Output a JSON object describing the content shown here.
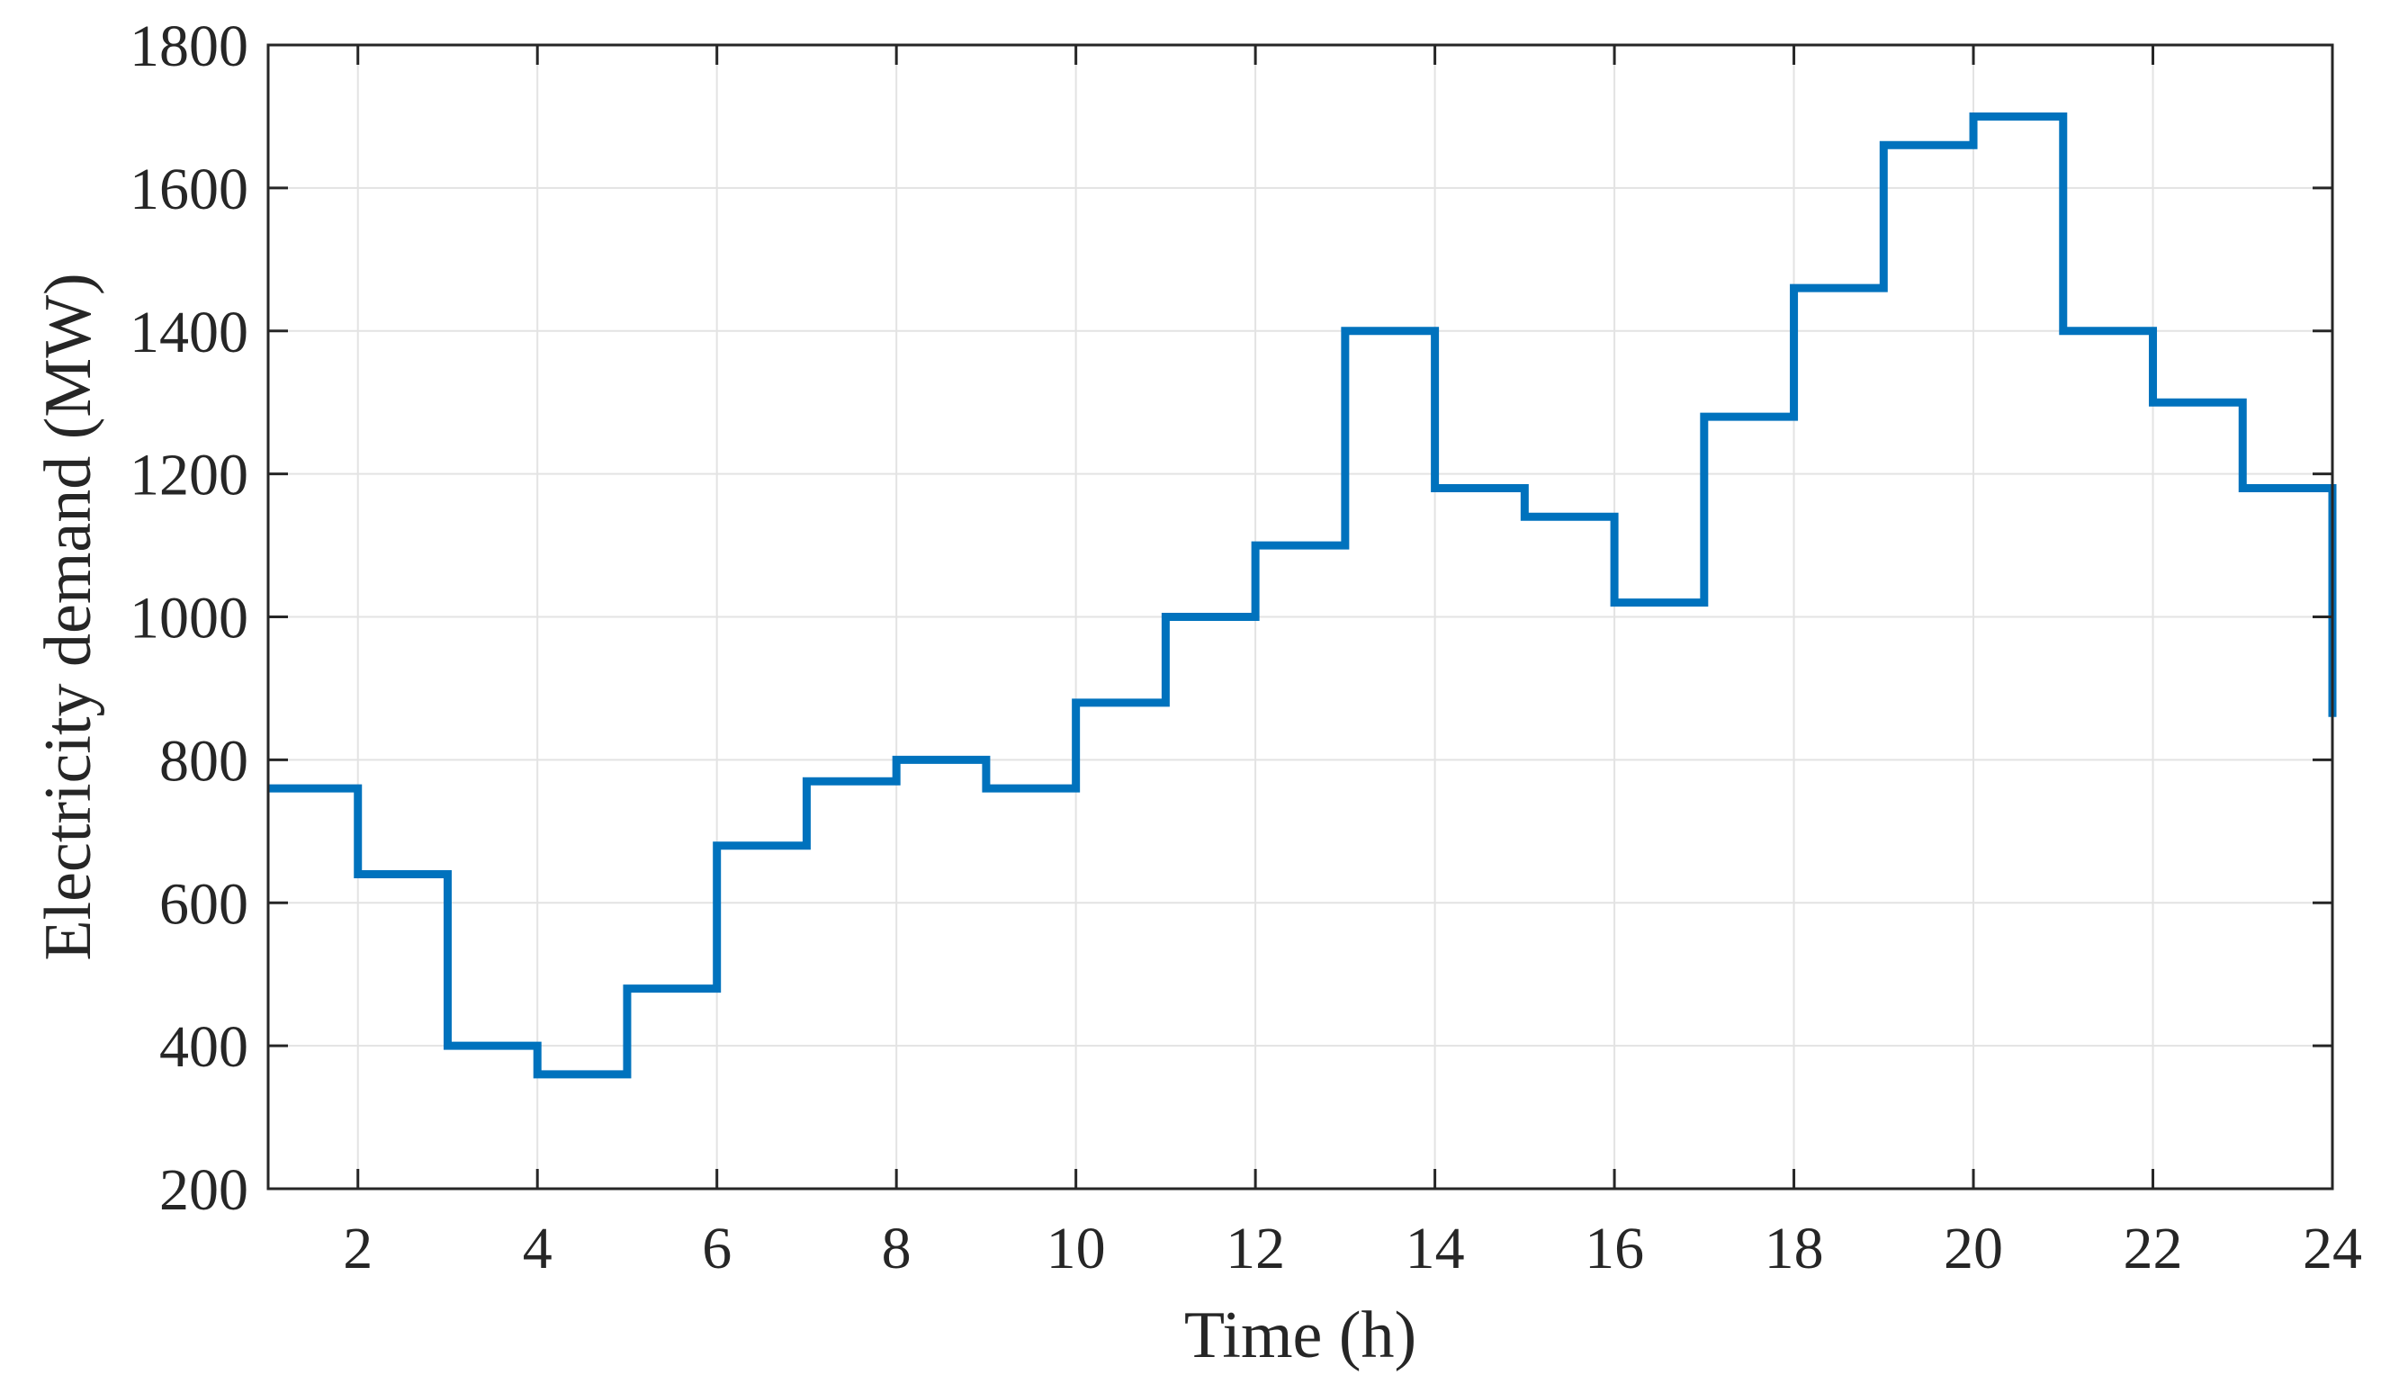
{
  "chart_data": {
    "type": "line",
    "step": "post",
    "xlabel": "Time (h)",
    "ylabel": "Electricity demand (MW)",
    "xlim": [
      1,
      24
    ],
    "ylim": [
      200,
      1800
    ],
    "xticks": [
      2,
      4,
      6,
      8,
      10,
      12,
      14,
      16,
      18,
      20,
      22,
      24
    ],
    "yticks": [
      200,
      400,
      600,
      800,
      1000,
      1200,
      1400,
      1600,
      1800
    ],
    "grid": true,
    "series": [
      {
        "color": "#0072BD",
        "x": [
          1,
          2,
          3,
          4,
          5,
          6,
          7,
          8,
          9,
          10,
          11,
          12,
          13,
          14,
          15,
          16,
          17,
          18,
          19,
          20,
          21,
          22,
          23,
          24
        ],
        "values": [
          760,
          640,
          400,
          360,
          480,
          680,
          770,
          800,
          760,
          880,
          1000,
          1100,
          1400,
          1180,
          1140,
          1020,
          1280,
          1460,
          1660,
          1700,
          1400,
          1300,
          1180,
          860
        ]
      }
    ]
  }
}
